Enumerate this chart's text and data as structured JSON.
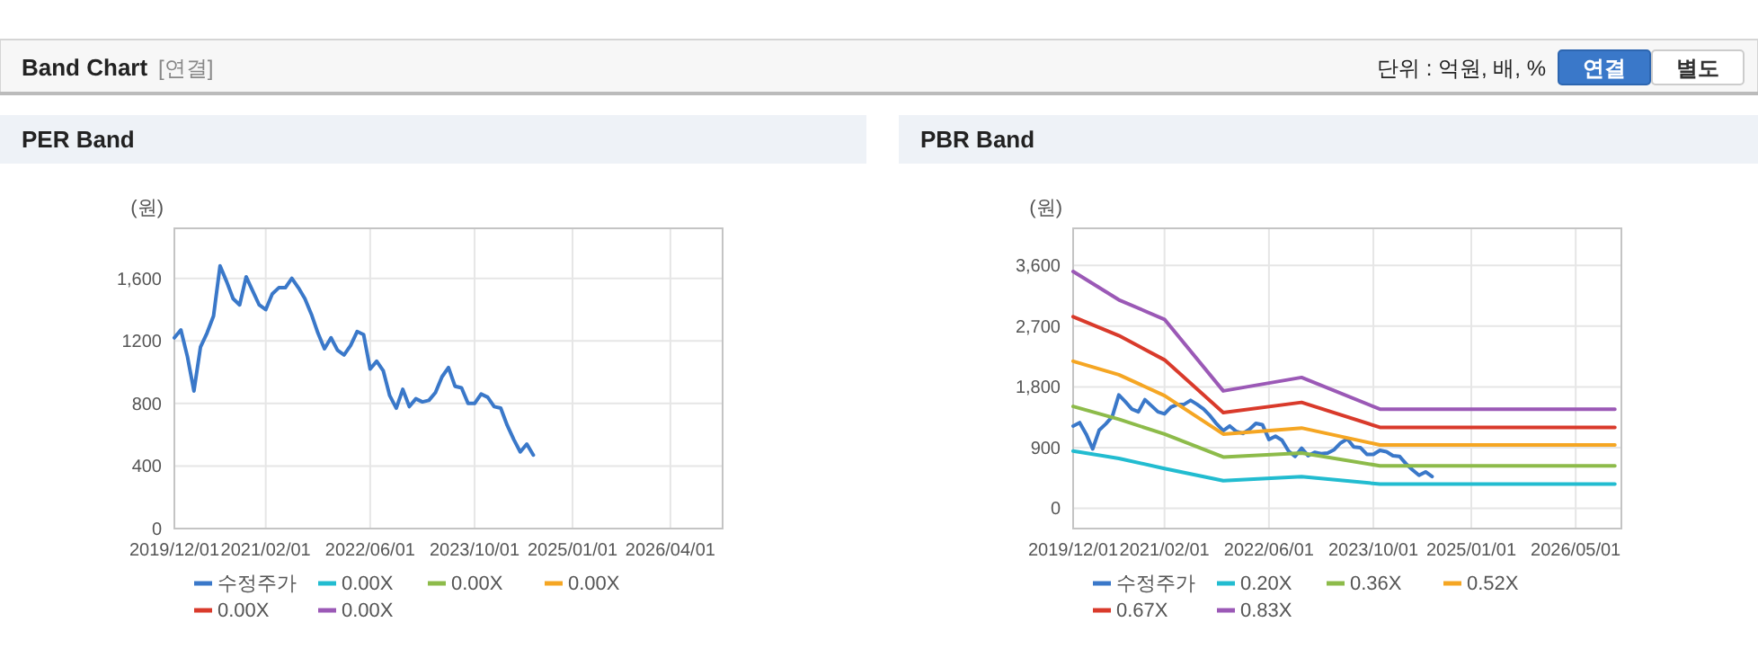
{
  "chart_data": [
    {
      "type": "other",
      "title": "Band Chart",
      "annotations": [
        "[연결]",
        "단위 : 억원, 배, %",
        "연결",
        "별도"
      ]
    },
    {
      "type": "line",
      "title": "PER Band",
      "ylabel": "(원)",
      "grid": true,
      "legend": "bottom",
      "xlim": [
        "2019-12",
        "2026-12"
      ],
      "ylim": [
        0,
        1920
      ],
      "xticks": [
        {
          "value": "2019-12",
          "label": "2019/12/01"
        },
        {
          "value": "2021-02",
          "label": "2021/02/01"
        },
        {
          "value": "2022-06",
          "label": "2022/06/01"
        },
        {
          "value": "2023-10",
          "label": "2023/10/01"
        },
        {
          "value": "2025-01",
          "label": "2025/01/01"
        },
        {
          "value": "2026-04",
          "label": "2026/04/01"
        }
      ],
      "yticks": [
        0,
        400,
        800,
        1200,
        {
          "value": 1600,
          "label": "1,600"
        }
      ],
      "series": [
        {
          "name": "수정주가",
          "color": "#3a78c9",
          "x": [
            "2019-12",
            "2020-01",
            "2020-02",
            "2020-03",
            "2020-04",
            "2020-05",
            "2020-06",
            "2020-07",
            "2020-08",
            "2020-09",
            "2020-10",
            "2020-11",
            "2020-12",
            "2021-01",
            "2021-02",
            "2021-03",
            "2021-04",
            "2021-05",
            "2021-06",
            "2021-07",
            "2021-08",
            "2021-09",
            "2021-10",
            "2021-11",
            "2021-12",
            "2022-01",
            "2022-02",
            "2022-03",
            "2022-04",
            "2022-05",
            "2022-06",
            "2022-07",
            "2022-08",
            "2022-09",
            "2022-10",
            "2022-11",
            "2022-12",
            "2023-01",
            "2023-02",
            "2023-03",
            "2023-04",
            "2023-05",
            "2023-06",
            "2023-07",
            "2023-08",
            "2023-09",
            "2023-10",
            "2023-11",
            "2023-12",
            "2024-01",
            "2024-02",
            "2024-03",
            "2024-04",
            "2024-05",
            "2024-06",
            "2024-07"
          ],
          "values": [
            1220,
            1270,
            1100,
            880,
            1160,
            1250,
            1360,
            1680,
            1580,
            1470,
            1430,
            1610,
            1520,
            1430,
            1400,
            1500,
            1540,
            1540,
            1600,
            1540,
            1470,
            1370,
            1250,
            1150,
            1220,
            1140,
            1110,
            1170,
            1260,
            1240,
            1020,
            1070,
            1010,
            850,
            770,
            890,
            780,
            830,
            810,
            820,
            870,
            970,
            1030,
            910,
            900,
            800,
            800,
            860,
            840,
            780,
            770,
            660,
            570,
            490,
            540,
            470
          ]
        },
        {
          "name": "0.00X",
          "color": "#22bcd0"
        },
        {
          "name": "0.00X",
          "color": "#8dbb4a"
        },
        {
          "name": "0.00X",
          "color": "#f5a623"
        },
        {
          "name": "0.00X",
          "color": "#d93a2b"
        },
        {
          "name": "0.00X",
          "color": "#9b59b6"
        }
      ]
    },
    {
      "type": "line",
      "title": "PBR Band",
      "ylabel": "(원)",
      "grid": true,
      "legend": "bottom",
      "xlim": [
        "2019-12",
        "2026-12"
      ],
      "ylim": [
        -300,
        4150
      ],
      "xticks": [
        {
          "value": "2019-12",
          "label": "2019/12/01"
        },
        {
          "value": "2021-02",
          "label": "2021/02/01"
        },
        {
          "value": "2022-06",
          "label": "2022/06/01"
        },
        {
          "value": "2023-10",
          "label": "2023/10/01"
        },
        {
          "value": "2025-01",
          "label": "2025/01/01"
        },
        {
          "value": "2026-05",
          "label": "2026/05/01"
        }
      ],
      "yticks": [
        0,
        900,
        {
          "value": 1800,
          "label": "1,800"
        },
        {
          "value": 2700,
          "label": "2,700"
        },
        {
          "value": 3600,
          "label": "3,600"
        }
      ],
      "series": [
        {
          "name": "수정주가",
          "color": "#3a78c9",
          "x": [
            "2019-12",
            "2020-01",
            "2020-02",
            "2020-03",
            "2020-04",
            "2020-05",
            "2020-06",
            "2020-07",
            "2020-08",
            "2020-09",
            "2020-10",
            "2020-11",
            "2020-12",
            "2021-01",
            "2021-02",
            "2021-03",
            "2021-04",
            "2021-05",
            "2021-06",
            "2021-07",
            "2021-08",
            "2021-09",
            "2021-10",
            "2021-11",
            "2021-12",
            "2022-01",
            "2022-02",
            "2022-03",
            "2022-04",
            "2022-05",
            "2022-06",
            "2022-07",
            "2022-08",
            "2022-09",
            "2022-10",
            "2022-11",
            "2022-12",
            "2023-01",
            "2023-02",
            "2023-03",
            "2023-04",
            "2023-05",
            "2023-06",
            "2023-07",
            "2023-08",
            "2023-09",
            "2023-10",
            "2023-11",
            "2023-12",
            "2024-01",
            "2024-02",
            "2024-03",
            "2024-04",
            "2024-05",
            "2024-06",
            "2024-07"
          ],
          "values": [
            1220,
            1270,
            1100,
            880,
            1160,
            1250,
            1360,
            1680,
            1580,
            1470,
            1430,
            1610,
            1520,
            1430,
            1400,
            1500,
            1540,
            1540,
            1600,
            1540,
            1470,
            1370,
            1250,
            1150,
            1220,
            1140,
            1110,
            1170,
            1260,
            1240,
            1020,
            1070,
            1010,
            850,
            770,
            890,
            780,
            830,
            810,
            820,
            870,
            970,
            1030,
            910,
            900,
            800,
            800,
            860,
            840,
            780,
            770,
            660,
            570,
            490,
            540,
            470
          ]
        },
        {
          "name": "0.20X",
          "color": "#22bcd0",
          "x": [
            "2019-12",
            "2020-07",
            "2021-02",
            "2021-11",
            "2022-11",
            "2023-11",
            "2026-11"
          ],
          "values": [
            850,
            740,
            590,
            410,
            470,
            360,
            360
          ]
        },
        {
          "name": "0.36X",
          "color": "#8dbb4a",
          "x": [
            "2019-12",
            "2020-07",
            "2021-02",
            "2021-11",
            "2022-11",
            "2023-11",
            "2026-11"
          ],
          "values": [
            1510,
            1320,
            1100,
            760,
            820,
            630,
            630
          ]
        },
        {
          "name": "0.52X",
          "color": "#f5a623",
          "x": [
            "2019-12",
            "2020-07",
            "2021-02",
            "2021-11",
            "2022-11",
            "2023-11",
            "2026-11"
          ],
          "values": [
            2180,
            1980,
            1670,
            1100,
            1190,
            940,
            940
          ]
        },
        {
          "name": "0.67X",
          "color": "#d93a2b",
          "x": [
            "2019-12",
            "2020-07",
            "2021-02",
            "2021-11",
            "2022-11",
            "2023-11",
            "2026-11"
          ],
          "values": [
            2840,
            2560,
            2200,
            1420,
            1570,
            1200,
            1200
          ]
        },
        {
          "name": "0.83X",
          "color": "#9b59b6",
          "x": [
            "2019-12",
            "2020-07",
            "2021-02",
            "2021-11",
            "2022-02",
            "2022-11",
            "2023-11",
            "2026-11"
          ],
          "values": [
            3510,
            3090,
            2800,
            1740,
            1790,
            1940,
            1470,
            1470
          ]
        }
      ]
    }
  ]
}
